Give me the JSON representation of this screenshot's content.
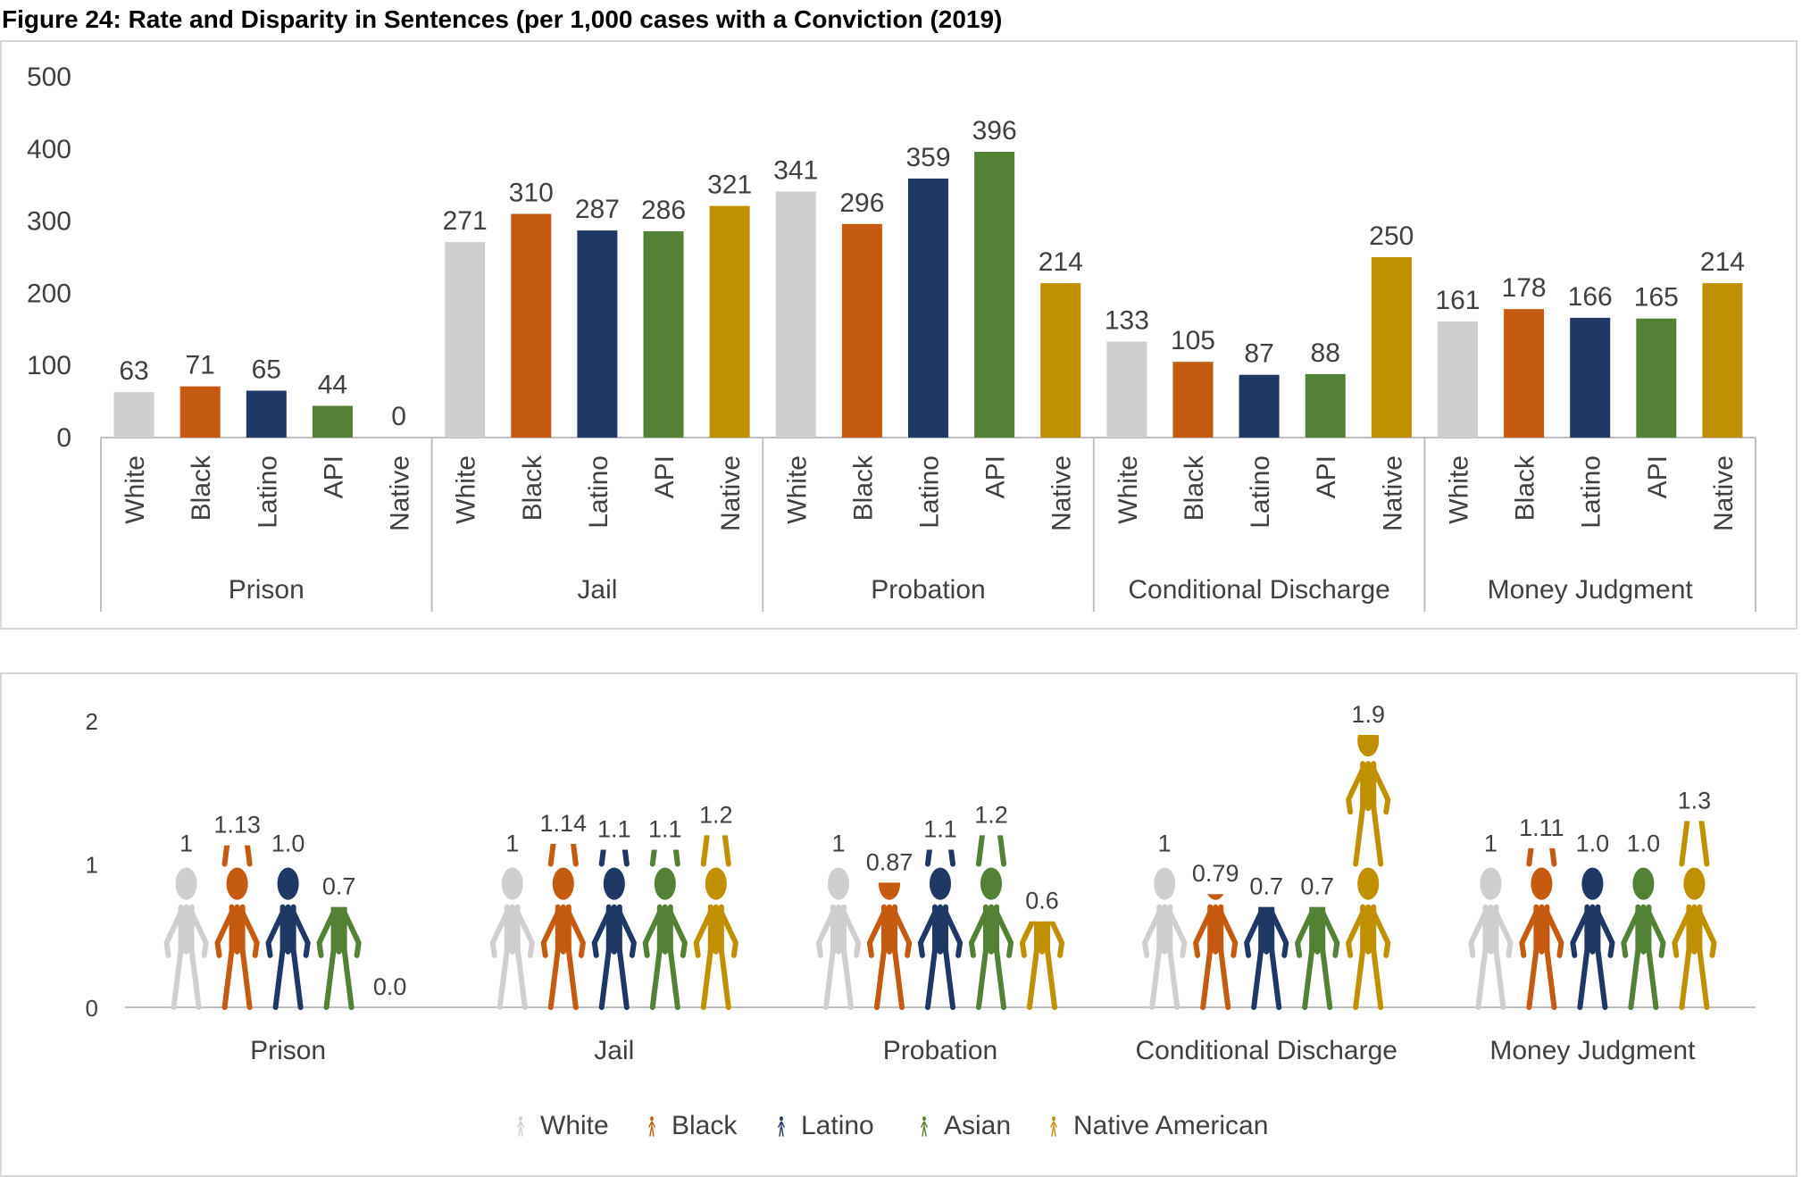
{
  "figure_title": "Figure 24: Rate and Disparity in Sentences (per 1,000 cases with a Conviction (2019)",
  "colors": {
    "White": "#d0cece",
    "Black": "#c55a11",
    "Latino": "#203864",
    "API": "#538135",
    "Native": "#bf9000",
    "axis": "#bfbfbf",
    "text": "#404040"
  },
  "chart_data": [
    {
      "type": "bar",
      "title": "",
      "ylim": [
        0,
        500
      ],
      "yticks": [
        0,
        100,
        200,
        300,
        400,
        500
      ],
      "groups": [
        "Prison",
        "Jail",
        "Probation",
        "Conditional Discharge",
        "Money Judgment"
      ],
      "categories": [
        "White",
        "Black",
        "Latino",
        "API",
        "Native"
      ],
      "values": [
        [
          63,
          71,
          65,
          44,
          0
        ],
        [
          271,
          310,
          287,
          286,
          321
        ],
        [
          341,
          296,
          359,
          396,
          214
        ],
        [
          133,
          105,
          87,
          88,
          250
        ],
        [
          161,
          178,
          166,
          165,
          214
        ]
      ],
      "grid": false,
      "legend": "none"
    },
    {
      "type": "pictograph",
      "title": "",
      "ylim": [
        0,
        2
      ],
      "yticks": [
        0,
        1,
        2
      ],
      "groups": [
        "Prison",
        "Jail",
        "Probation",
        "Conditional Discharge",
        "Money Judgment"
      ],
      "series": [
        {
          "name": "White",
          "values": [
            1,
            1,
            1,
            1,
            1
          ],
          "labels": [
            "1",
            "1",
            "1",
            "1",
            "1"
          ]
        },
        {
          "name": "Black",
          "values": [
            1.13,
            1.14,
            0.87,
            0.79,
            1.11
          ],
          "labels": [
            "1.13",
            "1.14",
            "0.87",
            "0.79",
            "1.11"
          ]
        },
        {
          "name": "Latino",
          "values": [
            1.0,
            1.1,
            1.1,
            0.7,
            1.0
          ],
          "labels": [
            "1.0",
            "1.1",
            "1.1",
            "0.7",
            "1.0"
          ]
        },
        {
          "name": "Asian",
          "values": [
            0.7,
            1.1,
            1.2,
            0.7,
            1.0
          ],
          "labels": [
            "0.7",
            "1.1",
            "1.2",
            "0.7",
            "1.0"
          ]
        },
        {
          "name": "Native American",
          "values": [
            0.0,
            1.2,
            0.6,
            1.9,
            1.3
          ],
          "labels": [
            "0.0",
            "1.2",
            "0.6",
            "1.9",
            "1.3"
          ]
        }
      ],
      "grid": false,
      "legend": "bottom"
    }
  ]
}
